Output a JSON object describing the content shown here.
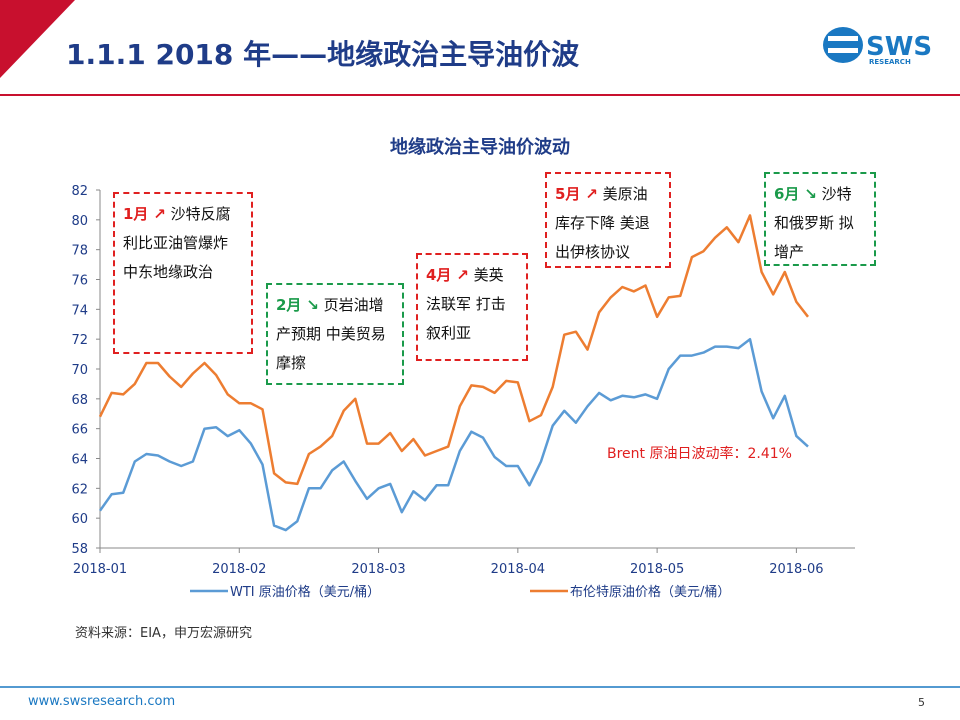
{
  "header": {
    "title": "1.1.1 2018 年——地缘政治主导油价波",
    "logo": "SWS",
    "logo_sub": "RESEARCH"
  },
  "chart_data": {
    "type": "line",
    "title": "地缘政治主导油价波动",
    "x": [
      "2018-01",
      null,
      null,
      null,
      null,
      null,
      null,
      null,
      null,
      null,
      null,
      null,
      "2018-02",
      null,
      null,
      null,
      null,
      null,
      null,
      null,
      null,
      null,
      null,
      null,
      "2018-03",
      null,
      null,
      null,
      null,
      null,
      null,
      null,
      null,
      null,
      null,
      null,
      "2018-04",
      null,
      null,
      null,
      null,
      null,
      null,
      null,
      null,
      null,
      null,
      null,
      "2018-05",
      null,
      null,
      null,
      null,
      null,
      null,
      null,
      null,
      null,
      null,
      null,
      "2018-06",
      null
    ],
    "series": [
      {
        "name": "WTI 原油价格（美元/桶）",
        "color": "#5b9bd5",
        "values": [
          60.5,
          61.6,
          61.7,
          63.8,
          64.3,
          64.2,
          63.8,
          63.5,
          63.8,
          66.0,
          66.1,
          65.5,
          65.9,
          65.0,
          63.6,
          59.5,
          59.2,
          59.8,
          62.0,
          62.0,
          63.2,
          63.8,
          62.5,
          61.3,
          62.0,
          62.3,
          60.4,
          61.8,
          61.2,
          62.2,
          62.2,
          64.5,
          65.8,
          65.4,
          64.1,
          63.5,
          63.5,
          62.2,
          63.8,
          66.2,
          67.2,
          66.4,
          67.5,
          68.4,
          67.9,
          68.2,
          68.1,
          68.3,
          68.0,
          70.0,
          70.9,
          70.9,
          71.1,
          71.5,
          71.5,
          71.4,
          72.0,
          68.5,
          66.7,
          68.2,
          65.5,
          64.8
        ]
      },
      {
        "name": "布伦特原油价格（美元/桶）",
        "color": "#ed7d31",
        "values": [
          66.8,
          68.4,
          68.3,
          69.0,
          70.4,
          70.4,
          69.5,
          68.8,
          69.7,
          70.4,
          69.6,
          68.3,
          67.7,
          67.7,
          67.3,
          63.0,
          62.4,
          62.3,
          64.3,
          64.8,
          65.5,
          67.2,
          68.0,
          65.0,
          65.0,
          65.7,
          64.5,
          65.3,
          64.2,
          64.5,
          64.8,
          67.5,
          68.9,
          68.8,
          68.4,
          69.2,
          69.1,
          66.5,
          66.9,
          68.8,
          72.3,
          72.5,
          71.3,
          73.8,
          74.8,
          75.5,
          75.2,
          75.6,
          73.5,
          74.8,
          74.9,
          77.5,
          77.9,
          78.8,
          79.5,
          78.5,
          80.3,
          76.5,
          75.0,
          76.5,
          74.5,
          73.5
        ]
      }
    ],
    "ylim": [
      58,
      82
    ],
    "yticks": [
      58,
      60,
      62,
      64,
      66,
      68,
      70,
      72,
      74,
      76,
      78,
      80,
      82
    ],
    "grid": false,
    "legend": "bottom",
    "annotations": [
      {
        "month": "1月",
        "arrow": "↗",
        "text": "沙特反腐 利比亚油管爆炸 中东地缘政治",
        "color": "#e02020"
      },
      {
        "month": "2月",
        "arrow": "↘",
        "text": "页岩油增产预期 中美贸易摩擦",
        "color": "#1a9a4a"
      },
      {
        "month": "4月",
        "arrow": "↗",
        "text": "美英法联军 打击叙利亚",
        "color": "#e02020"
      },
      {
        "month": "5月",
        "arrow": "↗",
        "text": "美原油库存下降 美退出伊核协议",
        "color": "#e02020"
      },
      {
        "month": "6月",
        "arrow": "↘",
        "text": "沙特和俄罗斯 拟增产",
        "color": "#1a9a4a"
      }
    ],
    "note": "Brent 原油日波动率：2.41%"
  },
  "source": "资料来源：EIA，申万宏源研究",
  "footer": {
    "url": "www.swsresearch.com",
    "page": "5"
  }
}
